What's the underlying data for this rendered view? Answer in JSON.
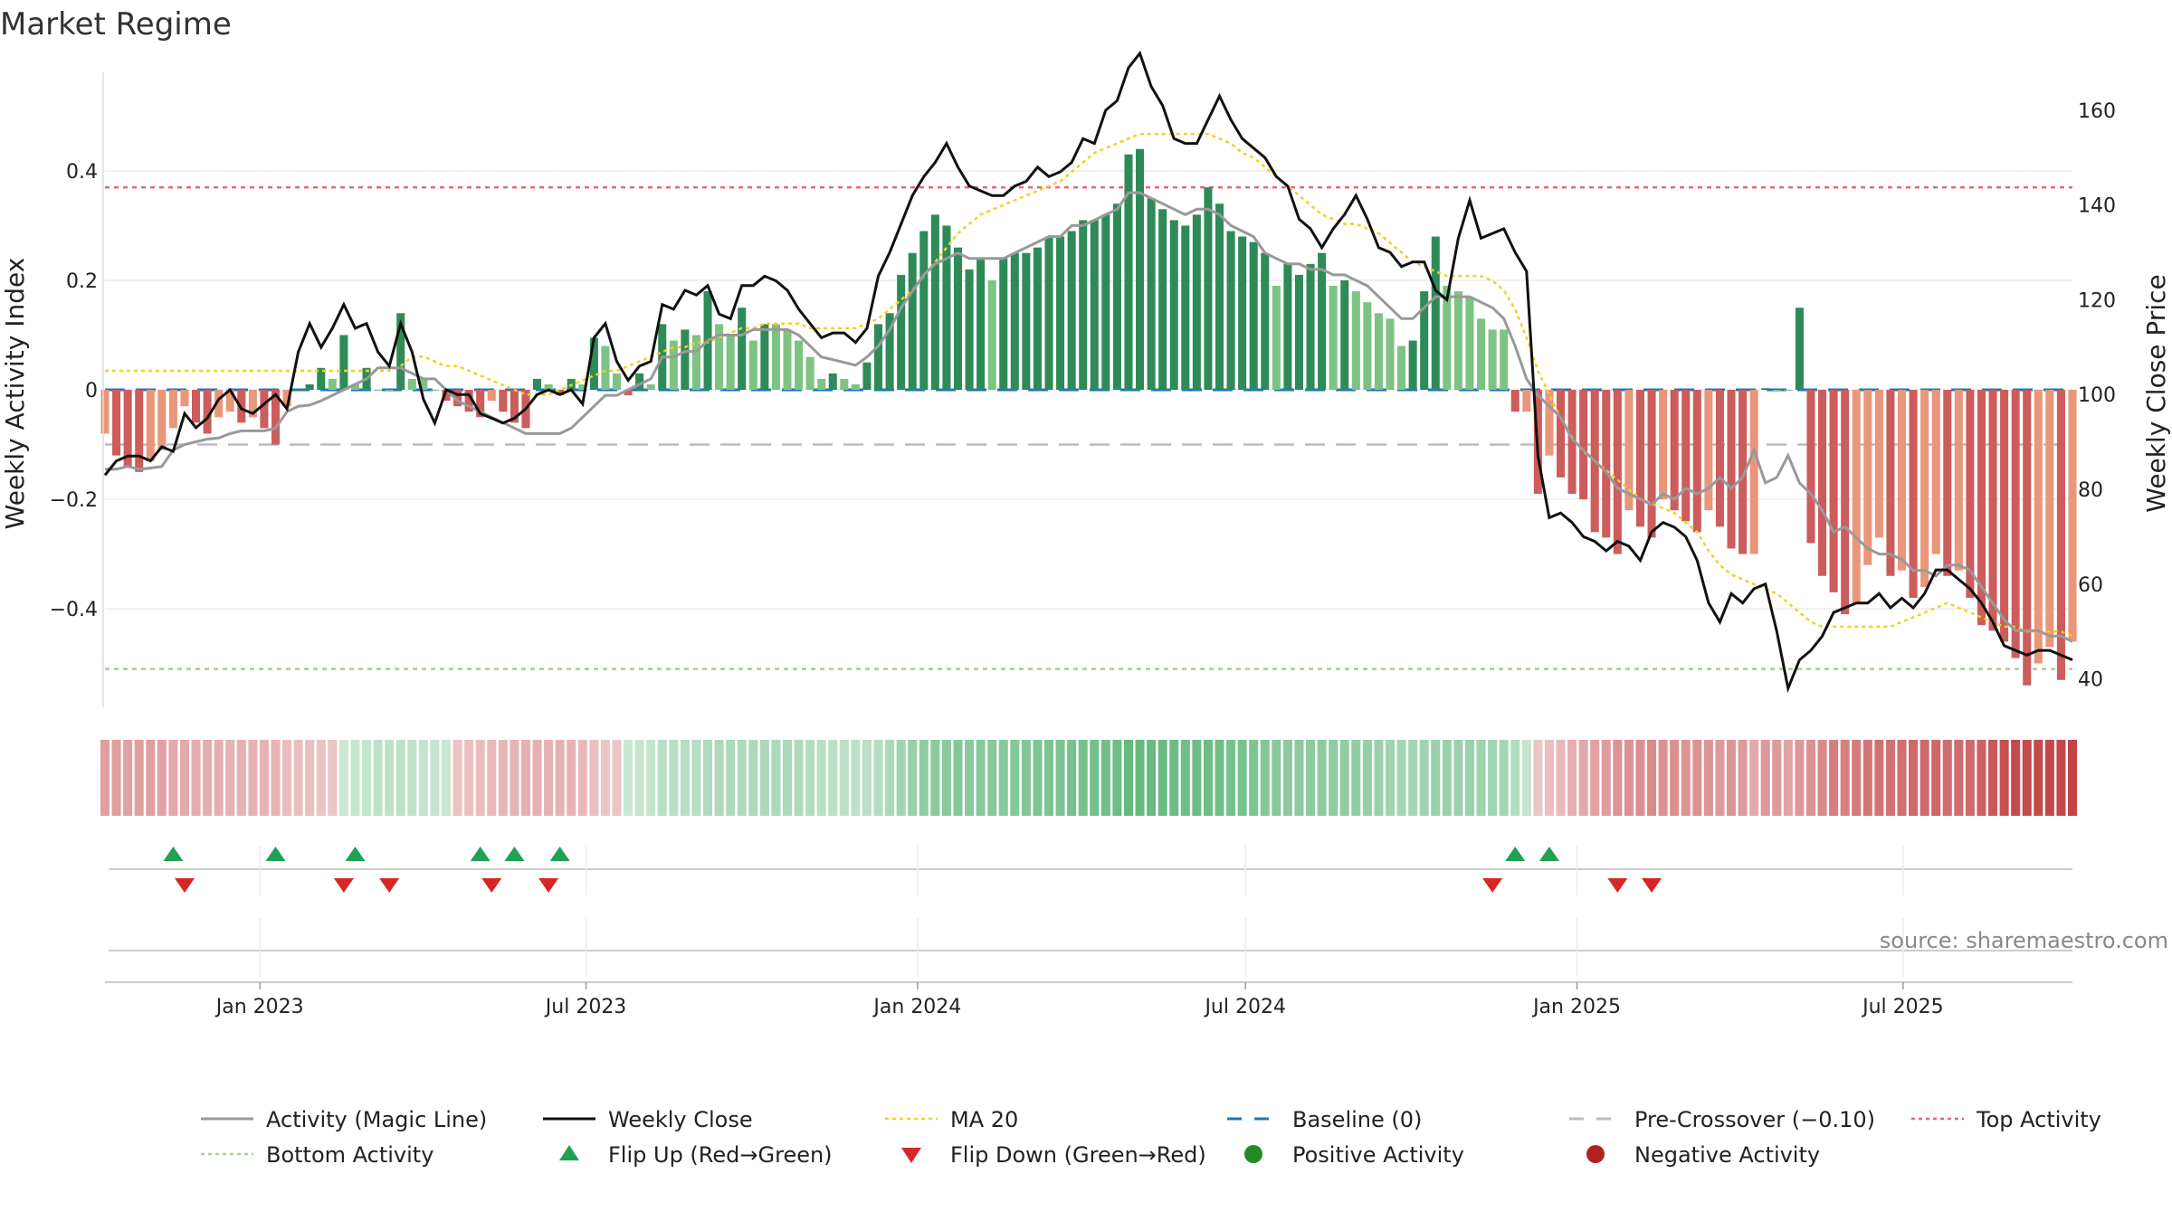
{
  "chart_data": {
    "type": "bar",
    "title": "Market Regime",
    "ylabel_left": "Weekly Activity Index",
    "ylabel_right": "Weekly Close Price",
    "x_ticks": [
      "Jan 2023",
      "Jul 2023",
      "Jan 2024",
      "Jul 2024",
      "Jan 2025",
      "Jul 2025"
    ],
    "y_left_ticks": [
      "0.4",
      "0.2",
      "0",
      "−0.2",
      "−0.4"
    ],
    "y_left_tick_values": [
      0.4,
      0.2,
      0,
      -0.2,
      -0.4
    ],
    "y_right_ticks": [
      "160",
      "140",
      "120",
      "100",
      "80",
      "60",
      "40"
    ],
    "y_right_tick_values": [
      160,
      140,
      120,
      100,
      80,
      60,
      40
    ],
    "ylim_left": [
      -0.58,
      0.58
    ],
    "ylim_right": [
      34,
      168
    ],
    "x_start": "2022-10-07",
    "x_end": "2025-10-03",
    "reference_lines": {
      "baseline": 0,
      "pre_crossover": -0.1,
      "top_activity": 0.37,
      "bottom_activity": -0.51
    },
    "activity_index": [
      -0.08,
      -0.12,
      -0.14,
      -0.15,
      -0.13,
      -0.11,
      -0.07,
      -0.03,
      -0.06,
      -0.08,
      -0.05,
      -0.04,
      -0.06,
      -0.05,
      -0.07,
      -0.1,
      -0.03,
      0.0,
      0.01,
      0.04,
      0.02,
      0.1,
      0.01,
      0.04,
      0.0,
      -0.0,
      0.14,
      0.02,
      0.02,
      0.0,
      -0.02,
      -0.03,
      -0.04,
      -0.05,
      -0.02,
      -0.04,
      -0.06,
      -0.07,
      0.02,
      0.01,
      -0.01,
      0.02,
      0.01,
      0.095,
      0.08,
      0.03,
      -0.01,
      0.03,
      0.01,
      0.12,
      0.09,
      0.11,
      0.1,
      0.18,
      0.12,
      0.1,
      0.15,
      0.09,
      0.12,
      0.12,
      0.11,
      0.09,
      0.06,
      0.02,
      0.03,
      0.02,
      0.01,
      0.05,
      0.12,
      0.14,
      0.21,
      0.25,
      0.29,
      0.32,
      0.3,
      0.26,
      0.22,
      0.24,
      0.2,
      0.24,
      0.25,
      0.25,
      0.26,
      0.28,
      0.28,
      0.29,
      0.31,
      0.31,
      0.32,
      0.34,
      0.43,
      0.44,
      0.35,
      0.33,
      0.31,
      0.3,
      0.32,
      0.37,
      0.34,
      0.29,
      0.28,
      0.27,
      0.25,
      0.19,
      0.23,
      0.21,
      0.23,
      0.25,
      0.19,
      0.2,
      0.18,
      0.16,
      0.14,
      0.13,
      0.08,
      0.09,
      0.18,
      0.28,
      0.19,
      0.18,
      0.17,
      0.13,
      0.11,
      0.11,
      -0.04,
      -0.04,
      -0.19,
      -0.12,
      -0.16,
      -0.19,
      -0.2,
      -0.26,
      -0.27,
      -0.3,
      -0.22,
      -0.25,
      -0.27,
      -0.2,
      -0.22,
      -0.24,
      -0.26,
      -0.22,
      -0.25,
      -0.29,
      -0.3,
      -0.3,
      0.003,
      0.0,
      0.0,
      0.15,
      -0.28,
      -0.34,
      -0.37,
      -0.41,
      -0.39,
      -0.32,
      -0.27,
      -0.34,
      -0.33,
      -0.38,
      -0.36,
      -0.3,
      -0.34,
      -0.33,
      -0.38,
      -0.43,
      -0.44,
      -0.46,
      -0.49,
      -0.54,
      -0.5,
      -0.47,
      -0.53,
      -0.46
    ],
    "activity_line": [
      -0.145,
      -0.145,
      -0.14,
      -0.145,
      -0.143,
      -0.14,
      -0.11,
      -0.1,
      -0.095,
      -0.09,
      -0.088,
      -0.08,
      -0.075,
      -0.075,
      -0.075,
      -0.07,
      -0.04,
      -0.03,
      -0.028,
      -0.02,
      -0.01,
      0.0,
      0.01,
      0.02,
      0.04,
      0.04,
      0.04,
      0.03,
      0.02,
      0.02,
      0.0,
      -0.02,
      -0.03,
      -0.04,
      -0.05,
      -0.06,
      -0.07,
      -0.08,
      -0.08,
      -0.08,
      -0.08,
      -0.07,
      -0.05,
      -0.03,
      -0.01,
      -0.01,
      0.0,
      0.01,
      0.02,
      0.06,
      0.06,
      0.07,
      0.07,
      0.09,
      0.1,
      0.1,
      0.1,
      0.11,
      0.11,
      0.11,
      0.11,
      0.1,
      0.08,
      0.06,
      0.055,
      0.05,
      0.045,
      0.06,
      0.08,
      0.11,
      0.15,
      0.18,
      0.21,
      0.23,
      0.24,
      0.25,
      0.24,
      0.24,
      0.24,
      0.24,
      0.25,
      0.26,
      0.27,
      0.28,
      0.28,
      0.3,
      0.3,
      0.31,
      0.32,
      0.33,
      0.36,
      0.36,
      0.35,
      0.34,
      0.33,
      0.32,
      0.33,
      0.33,
      0.32,
      0.3,
      0.29,
      0.28,
      0.25,
      0.24,
      0.23,
      0.23,
      0.22,
      0.22,
      0.21,
      0.21,
      0.2,
      0.19,
      0.17,
      0.15,
      0.13,
      0.13,
      0.15,
      0.17,
      0.17,
      0.17,
      0.17,
      0.16,
      0.15,
      0.13,
      0.08,
      0.02,
      -0.01,
      -0.03,
      -0.05,
      -0.09,
      -0.11,
      -0.13,
      -0.15,
      -0.18,
      -0.19,
      -0.2,
      -0.21,
      -0.19,
      -0.2,
      -0.18,
      -0.19,
      -0.18,
      -0.16,
      -0.18,
      -0.16,
      -0.11,
      -0.17,
      -0.16,
      -0.12,
      -0.17,
      -0.19,
      -0.22,
      -0.26,
      -0.25,
      -0.27,
      -0.29,
      -0.3,
      -0.3,
      -0.31,
      -0.33,
      -0.33,
      -0.34,
      -0.32,
      -0.32,
      -0.33,
      -0.36,
      -0.39,
      -0.42,
      -0.44,
      -0.44,
      -0.44,
      -0.45,
      -0.45,
      -0.46
    ],
    "weekly_close": [
      83,
      86,
      87,
      87,
      86,
      89,
      88,
      96,
      93,
      95,
      99,
      101,
      97,
      96,
      98,
      100,
      97,
      109,
      115,
      110,
      114,
      119,
      114,
      115,
      109,
      106,
      115,
      109,
      99,
      94,
      101,
      100,
      100,
      96,
      95,
      94,
      95,
      97,
      100,
      101,
      100,
      101,
      98,
      112,
      115,
      107,
      103,
      106,
      107,
      119,
      118,
      122,
      121,
      123,
      117,
      116,
      123,
      123,
      125,
      124,
      122,
      118,
      115,
      112,
      113,
      113,
      111,
      114,
      125,
      130,
      136,
      142,
      146,
      149,
      153,
      148,
      144,
      143,
      142,
      142,
      144,
      145,
      148,
      146,
      147,
      149,
      154,
      153,
      160,
      162,
      169,
      172,
      165,
      161,
      154,
      153,
      153,
      158,
      163,
      158,
      154,
      152,
      150,
      146,
      144,
      137,
      135,
      131,
      135,
      138,
      142,
      137,
      131,
      130,
      127,
      128,
      128,
      122,
      120,
      133,
      141,
      133,
      134,
      135,
      130,
      126,
      87,
      74,
      75,
      73,
      70,
      69,
      67,
      69,
      68,
      65,
      71,
      73,
      72,
      70,
      65,
      56,
      52,
      58,
      56,
      59,
      60,
      50,
      38,
      44,
      46,
      49,
      54,
      55,
      56,
      56,
      58,
      55,
      57,
      55,
      58,
      63,
      63,
      61,
      59,
      56,
      52,
      47,
      46,
      45,
      46,
      46,
      45,
      44
    ],
    "ma20": [
      105,
      105,
      105,
      105,
      105,
      105,
      105,
      105,
      105,
      105,
      105,
      105,
      105,
      105,
      105,
      105,
      105,
      105,
      105,
      105,
      105,
      105,
      105,
      105,
      105,
      105,
      106,
      108,
      108,
      107,
      106,
      106,
      105,
      104,
      103,
      102,
      101,
      100,
      100,
      100,
      101,
      102,
      103,
      104,
      105,
      105,
      106,
      107,
      108,
      109,
      110,
      110,
      111,
      111,
      112,
      113,
      114,
      114,
      115,
      115,
      115,
      115,
      114,
      114,
      114,
      114,
      114,
      115,
      116,
      118,
      120,
      122,
      125,
      128,
      131,
      134,
      136,
      138,
      139,
      140,
      141,
      142,
      143,
      144,
      145,
      147,
      149,
      151,
      152,
      153,
      154,
      155,
      155,
      155,
      155,
      155,
      155,
      155,
      154,
      153,
      151,
      150,
      148,
      146,
      144,
      142,
      140,
      138,
      137,
      136,
      136,
      135,
      134,
      132,
      130,
      128,
      127,
      126,
      125,
      125,
      125,
      125,
      124,
      122,
      118,
      112,
      105,
      100,
      95,
      91,
      88,
      86,
      84,
      82,
      80,
      78,
      77,
      76,
      75,
      73,
      71,
      67,
      64,
      62,
      61,
      60,
      59,
      58,
      56,
      54,
      52,
      51,
      51,
      51,
      51,
      51,
      51,
      51,
      52,
      53,
      54,
      55,
      56,
      55,
      54,
      53,
      52,
      51,
      51,
      50,
      50,
      50,
      50,
      49
    ],
    "flip_up_weeks": [
      6,
      15,
      22,
      33,
      36,
      40,
      124,
      127
    ],
    "flip_down_weeks": [
      7,
      21,
      25,
      34,
      39,
      122,
      133,
      136
    ],
    "colors": {
      "strong_green": "#2E8B57",
      "light_green": "#7DC383",
      "strong_red": "#CD5C5C",
      "light_red": "#E9967A",
      "activity_line": "#999999",
      "weekly_close": "#111111",
      "ma20": "#F2D024",
      "baseline": "#1F77B4",
      "pre_crossover": "#BBBBBB",
      "top_activity": "#E8657A",
      "bottom_activity": "#A8D08D",
      "flip_up": "#1FA055",
      "flip_down": "#D62728",
      "positive_dot": "#228B22",
      "negative_dot": "#B22222"
    },
    "legend": [
      {
        "label": "Activity (Magic Line)",
        "kind": "line",
        "color_key": "activity_line"
      },
      {
        "label": "Weekly Close",
        "kind": "line",
        "color_key": "weekly_close"
      },
      {
        "label": "MA 20",
        "kind": "dotted",
        "color_key": "ma20"
      },
      {
        "label": "Baseline (0)",
        "kind": "dashed",
        "color_key": "baseline"
      },
      {
        "label": "Pre-Crossover (−0.10)",
        "kind": "dashed",
        "color_key": "pre_crossover"
      },
      {
        "label": "Top Activity",
        "kind": "dotted",
        "color_key": "top_activity"
      },
      {
        "label": "Bottom Activity",
        "kind": "dotted",
        "color_key": "bottom_activity"
      },
      {
        "label": "Flip Up (Red→Green)",
        "kind": "triangle-up",
        "color_key": "flip_up"
      },
      {
        "label": "Flip Down (Green→Red)",
        "kind": "triangle-down",
        "color_key": "flip_down"
      },
      {
        "label": "Positive Activity",
        "kind": "dot",
        "color_key": "positive_dot"
      },
      {
        "label": "Negative Activity",
        "kind": "dot",
        "color_key": "negative_dot"
      }
    ],
    "source": "source: sharemaestro.com"
  }
}
